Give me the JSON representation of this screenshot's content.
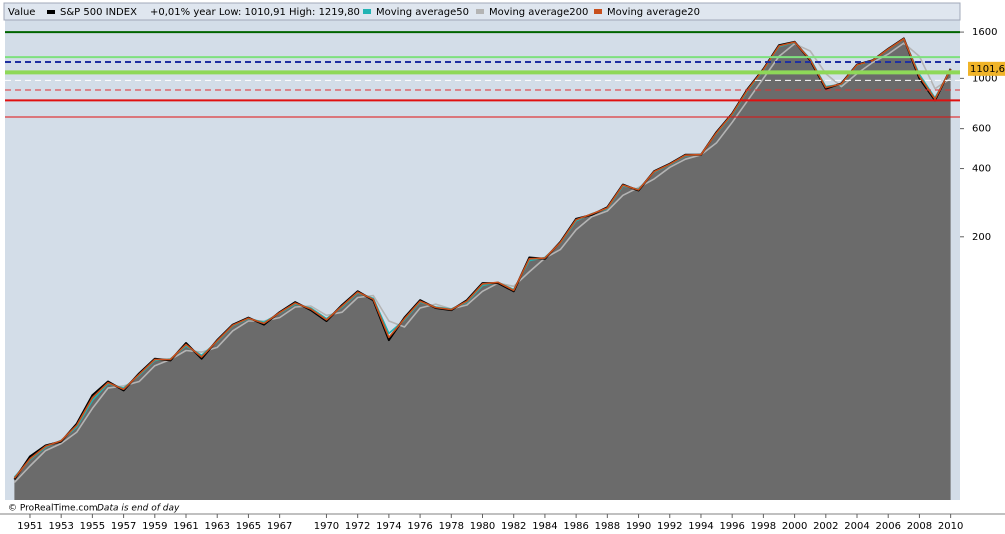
{
  "chart_data": {
    "type": "area",
    "title": "S&P 500 INDEX",
    "header_label": "Value",
    "header_info": "+0,01% year Low: 1010,91 High: 1219,80",
    "footer_source": "© ProRealTime.com",
    "footer_note": "Data is end of day",
    "log_scale": true,
    "x": [
      1950,
      1951,
      1952,
      1953,
      1954,
      1955,
      1956,
      1957,
      1958,
      1959,
      1960,
      1961,
      1962,
      1963,
      1964,
      1965,
      1966,
      1967,
      1968,
      1969,
      1970,
      1971,
      1972,
      1973,
      1974,
      1975,
      1976,
      1977,
      1978,
      1979,
      1980,
      1981,
      1982,
      1983,
      1984,
      1985,
      1986,
      1987,
      1988,
      1989,
      1990,
      1991,
      1992,
      1993,
      1994,
      1995,
      1996,
      1997,
      1998,
      1999,
      2000,
      2001,
      2002,
      2003,
      2004,
      2005,
      2006,
      2007,
      2008,
      2009,
      2010
    ],
    "series": [
      {
        "name": "S&P 500 INDEX",
        "color": "#000000",
        "fill": "#6b6b6b",
        "values": [
          17,
          21.5,
          24,
          25,
          30,
          40,
          46,
          42,
          50,
          58,
          57,
          68,
          58,
          70,
          82,
          88,
          82,
          93,
          103,
          95,
          85,
          100,
          115,
          105,
          70,
          88,
          105,
          97,
          95,
          105,
          125,
          125,
          115,
          162,
          160,
          190,
          240,
          250,
          270,
          340,
          320,
          390,
          420,
          460,
          460,
          580,
          700,
          900,
          1100,
          1400,
          1450,
          1200,
          900,
          950,
          1150,
          1200,
          1350,
          1500,
          1000,
          800,
          1101.6
        ]
      },
      {
        "name": "Moving average50",
        "color": "#22b4b4",
        "values": [
          17.4,
          20.8,
          23.6,
          25.3,
          29,
          38,
          45,
          43,
          49,
          57,
          57.8,
          66,
          60,
          69,
          81,
          87,
          84,
          92,
          101,
          97,
          87,
          98,
          113,
          107,
          75,
          86,
          103,
          98,
          96,
          103,
          122,
          126,
          117,
          157,
          162,
          188,
          235,
          253,
          266,
          335,
          324,
          386,
          416,
          456,
          462,
          572,
          690,
          885,
          1085,
          1380,
          1440,
          1220,
          920,
          940,
          1140,
          1196,
          1340,
          1490,
          1040,
          820,
          1090
        ]
      },
      {
        "name": "Moving average200",
        "color": "#b4b4b4",
        "values": [
          16.5,
          19.5,
          22.8,
          24.5,
          27.5,
          35,
          43,
          44,
          46,
          54,
          57.5,
          63,
          62,
          65,
          77,
          85,
          85,
          88,
          98,
          99,
          90,
          93,
          108,
          110,
          85,
          80,
          97,
          101,
          96,
          100,
          115,
          125,
          121,
          140,
          161,
          176,
          215,
          245,
          260,
          305,
          330,
          360,
          405,
          440,
          460,
          520,
          640,
          800,
          1000,
          1250,
          1420,
          1320,
          1050,
          920,
          1050,
          1175,
          1280,
          1430,
          1250,
          900,
          1000
        ]
      },
      {
        "name": "Moving average20",
        "color": "#c8501e",
        "values": [
          17.2,
          21,
          23.8,
          25.2,
          29.5,
          39,
          45.5,
          42.5,
          49.5,
          57.5,
          57.5,
          67,
          59,
          69.5,
          81.5,
          87.5,
          83,
          92.5,
          102,
          96,
          86,
          99,
          114,
          106,
          72,
          87,
          104,
          97.5,
          95.5,
          104,
          124,
          126,
          116,
          160,
          161,
          189,
          238,
          252,
          268,
          338,
          322,
          388,
          418,
          458,
          461,
          576,
          696,
          893,
          1092,
          1390,
          1445,
          1210,
          910,
          945,
          1145,
          1198,
          1345,
          1495,
          1020,
          810,
          1095
        ]
      }
    ],
    "last_value": {
      "value": 1101.6,
      "label": "1101,6"
    },
    "hlines": [
      {
        "value": 1600,
        "color": "#006400",
        "width": 2,
        "dash": false
      },
      {
        "value": 1240,
        "color": "#7ee07e",
        "width": 2,
        "dash": false
      },
      {
        "value": 1180,
        "color": "#2030a0",
        "width": 2,
        "dash": true
      },
      {
        "value": 1063,
        "color": "#8ed858",
        "width": 4,
        "dash": false
      },
      {
        "value": 980,
        "color": "#ffffff",
        "width": 1,
        "dash": true
      },
      {
        "value": 888,
        "color": "#e03030",
        "width": 1,
        "dash": true
      },
      {
        "value": 800,
        "color": "#e01010",
        "width": 2,
        "dash": false
      },
      {
        "value": 675,
        "color": "#e01010",
        "width": 1,
        "dash": false
      }
    ],
    "xlim": [
      1949.4,
      2010.6
    ],
    "xticks": [
      1951,
      1953,
      1955,
      1957,
      1959,
      1961,
      1963,
      1965,
      1967,
      1970,
      1972,
      1974,
      1976,
      1978,
      1980,
      1982,
      1984,
      1986,
      1988,
      1990,
      1992,
      1994,
      1996,
      1998,
      2000,
      2002,
      2004,
      2006,
      2008,
      2010
    ],
    "ylim": [
      13.8,
      1809
    ],
    "yticks": [
      200,
      400,
      600,
      1000,
      1600
    ],
    "plot_background": "#d3dde8"
  }
}
